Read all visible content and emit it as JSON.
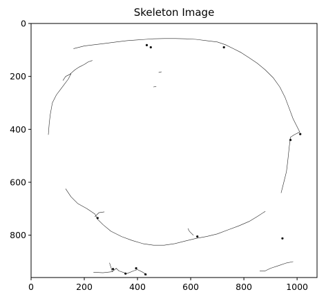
{
  "chart_data": {
    "type": "image",
    "title": "Skeleton Image",
    "xlabel": "",
    "ylabel": "",
    "xlim": [
      0,
      1075
    ],
    "ylim": [
      960,
      0
    ],
    "x_ticks": [
      0,
      200,
      400,
      600,
      800,
      1000
    ],
    "y_ticks": [
      0,
      200,
      400,
      600,
      800
    ],
    "grid": false,
    "foreground_color": "#222222",
    "background_color": "#ffffff",
    "paths": [
      {
        "name": "outer-loop-left",
        "points": [
          [
            65,
            420
          ],
          [
            68,
            380
          ],
          [
            72,
            345
          ],
          [
            80,
            300
          ],
          [
            95,
            270
          ],
          [
            110,
            250
          ],
          [
            125,
            230
          ],
          [
            140,
            210
          ],
          [
            150,
            190
          ],
          [
            130,
            200
          ],
          [
            120,
            215
          ]
        ]
      },
      {
        "name": "outer-loop-top",
        "points": [
          [
            160,
            95
          ],
          [
            200,
            85
          ],
          [
            240,
            80
          ],
          [
            280,
            75
          ],
          [
            320,
            70
          ],
          [
            360,
            65
          ],
          [
            400,
            62
          ],
          [
            430,
            60
          ],
          [
            460,
            58
          ],
          [
            500,
            57
          ],
          [
            540,
            57
          ],
          [
            580,
            58
          ],
          [
            620,
            60
          ],
          [
            660,
            65
          ],
          [
            700,
            70
          ],
          [
            730,
            80
          ]
        ]
      },
      {
        "name": "outer-loop-upper-left",
        "points": [
          [
            148,
            190
          ],
          [
            165,
            175
          ],
          [
            180,
            165
          ],
          [
            200,
            155
          ],
          [
            215,
            145
          ],
          [
            230,
            140
          ]
        ]
      },
      {
        "name": "outer-loop-right",
        "points": [
          [
            730,
            80
          ],
          [
            760,
            95
          ],
          [
            790,
            110
          ],
          [
            820,
            130
          ],
          [
            850,
            150
          ],
          [
            880,
            175
          ],
          [
            910,
            205
          ],
          [
            935,
            240
          ],
          [
            955,
            280
          ],
          [
            970,
            320
          ],
          [
            985,
            360
          ],
          [
            1000,
            390
          ],
          [
            1010,
            410
          ]
        ]
      },
      {
        "name": "outer-loop-right-lower",
        "points": [
          [
            1010,
            410
          ],
          [
            990,
            420
          ],
          [
            975,
            430
          ],
          [
            970,
            470
          ],
          [
            965,
            520
          ],
          [
            960,
            560
          ],
          [
            950,
            600
          ],
          [
            940,
            640
          ]
        ]
      },
      {
        "name": "outer-loop-bottom-left",
        "points": [
          [
            130,
            625
          ],
          [
            150,
            655
          ],
          [
            175,
            680
          ],
          [
            210,
            700
          ],
          [
            240,
            720
          ],
          [
            250,
            740
          ],
          [
            270,
            760
          ],
          [
            300,
            785
          ],
          [
            340,
            805
          ],
          [
            380,
            820
          ],
          [
            420,
            832
          ],
          [
            460,
            838
          ],
          [
            500,
            838
          ],
          [
            540,
            832
          ],
          [
            580,
            822
          ],
          [
            620,
            812
          ]
        ]
      },
      {
        "name": "outer-loop-bottom-right",
        "points": [
          [
            620,
            812
          ],
          [
            660,
            805
          ],
          [
            700,
            795
          ],
          [
            740,
            780
          ],
          [
            780,
            765
          ],
          [
            820,
            748
          ],
          [
            850,
            730
          ],
          [
            880,
            710
          ]
        ]
      },
      {
        "name": "left-stub",
        "points": [
          [
            240,
            730
          ],
          [
            255,
            715
          ],
          [
            275,
            712
          ]
        ]
      },
      {
        "name": "bottom-branch",
        "points": [
          [
            610,
            800
          ],
          [
            595,
            785
          ],
          [
            590,
            775
          ]
        ]
      },
      {
        "name": "bottom-curve",
        "points": [
          [
            235,
            940
          ],
          [
            270,
            942
          ],
          [
            305,
            938
          ],
          [
            320,
            925
          ],
          [
            330,
            935
          ],
          [
            360,
            945
          ],
          [
            385,
            935
          ],
          [
            400,
            930
          ],
          [
            420,
            940
          ],
          [
            435,
            950
          ]
        ]
      },
      {
        "name": "bottom-stub",
        "points": [
          [
            305,
            938
          ],
          [
            300,
            920
          ],
          [
            295,
            905
          ]
        ]
      },
      {
        "name": "bottom-right-curve",
        "points": [
          [
            860,
            935
          ],
          [
            880,
            935
          ],
          [
            900,
            925
          ],
          [
            930,
            915
          ],
          [
            960,
            905
          ],
          [
            985,
            900
          ]
        ]
      },
      {
        "name": "small-mark-1",
        "points": [
          [
            480,
            185
          ],
          [
            490,
            183
          ]
        ]
      },
      {
        "name": "small-mark-2",
        "points": [
          [
            460,
            240
          ],
          [
            470,
            238
          ]
        ]
      }
    ],
    "junctions": [
      [
        435,
        82
      ],
      [
        450,
        90
      ],
      [
        725,
        90
      ],
      [
        1012,
        418
      ],
      [
        975,
        440
      ],
      [
        250,
        735
      ],
      [
        625,
        805
      ],
      [
        308,
        928
      ],
      [
        355,
        945
      ],
      [
        395,
        925
      ],
      [
        430,
        948
      ],
      [
        945,
        812
      ]
    ]
  }
}
